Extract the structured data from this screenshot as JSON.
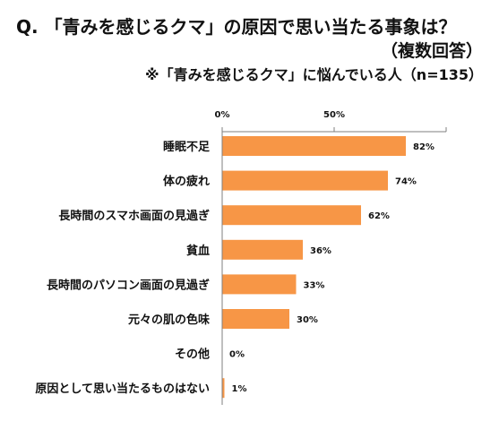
{
  "title": {
    "line1": "Q. 「青みを感じるクマ」の原因で思い当たる事象は？",
    "line2": "（複数回答）",
    "line3": "※「青みを感じるクマ」に悩んでいる人（n=135）"
  },
  "chart_data": {
    "type": "bar",
    "orientation": "horizontal",
    "categories": [
      "睡眠不足",
      "体の疲れ",
      "長時間のスマホ画面の見過ぎ",
      "貧血",
      "長時間のパソコン画面の見過ぎ",
      "元々の肌の色味",
      "その他",
      "原因として思い当たるものはない"
    ],
    "values": [
      82,
      74,
      62,
      36,
      33,
      30,
      0,
      1
    ],
    "value_labels": [
      "82%",
      "74%",
      "62%",
      "36%",
      "33%",
      "30%",
      "0%",
      "1%"
    ],
    "x_ticks": [
      {
        "value": 0,
        "label": "0%"
      },
      {
        "value": 50,
        "label": "50%"
      }
    ],
    "xlim": [
      0,
      100
    ],
    "grid": false,
    "colors": {
      "bar": "#f79646",
      "axis": "#7f7f7f",
      "text": "#111111"
    }
  }
}
